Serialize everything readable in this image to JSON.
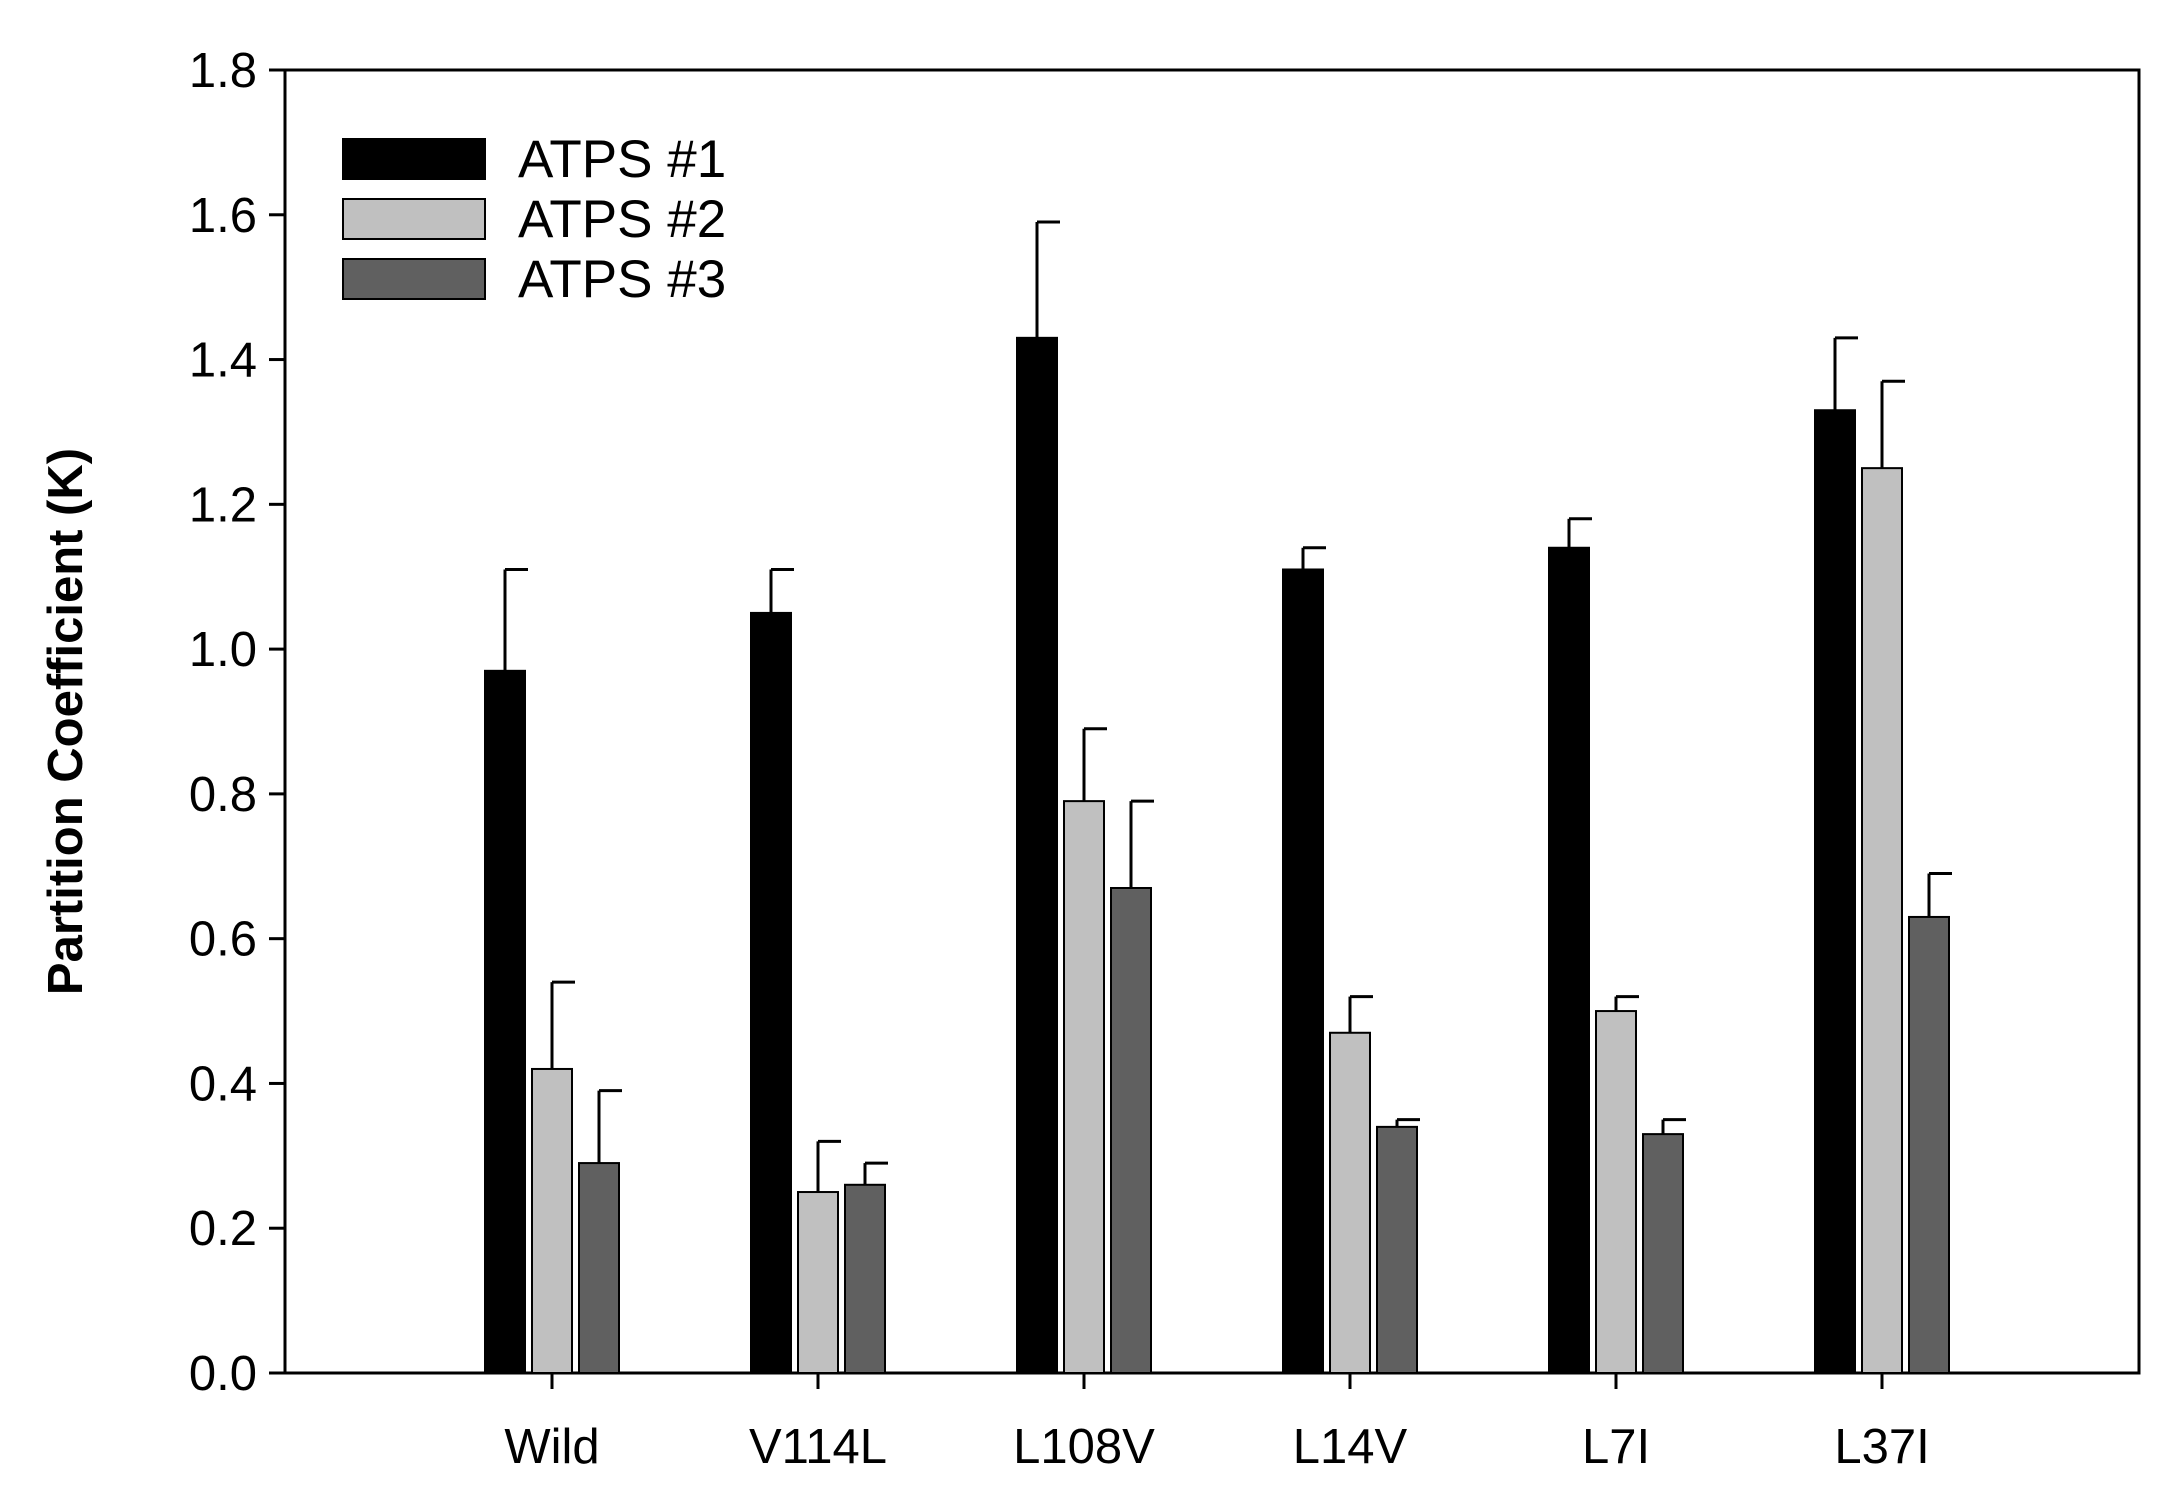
{
  "chart_data": {
    "type": "bar",
    "title": "",
    "xlabel": "",
    "ylabel": "Partition Coefficient (K)",
    "ylim": [
      0,
      1.8
    ],
    "yticks": [
      "0.0",
      "0.2",
      "0.4",
      "0.6",
      "0.8",
      "1.0",
      "1.2",
      "1.4",
      "1.6",
      "1.8"
    ],
    "categories": [
      "Wild",
      "V114L",
      "L108V",
      "L14V",
      "L7I",
      "L37I"
    ],
    "legend_position": "top-left",
    "series": [
      {
        "name": "ATPS #1",
        "color": "#000000",
        "values": [
          0.97,
          1.05,
          1.43,
          1.11,
          1.14,
          1.33
        ],
        "errors": [
          0.14,
          0.06,
          0.16,
          0.03,
          0.04,
          0.1
        ]
      },
      {
        "name": "ATPS #2",
        "color": "#c0c0c0",
        "values": [
          0.42,
          0.25,
          0.79,
          0.47,
          0.5,
          1.25
        ],
        "errors": [
          0.12,
          0.07,
          0.1,
          0.05,
          0.02,
          0.12
        ]
      },
      {
        "name": "ATPS #3",
        "color": "#606060",
        "values": [
          0.29,
          0.26,
          0.67,
          0.34,
          0.33,
          0.63
        ],
        "errors": [
          0.1,
          0.03,
          0.12,
          0.01,
          0.02,
          0.06
        ]
      }
    ]
  }
}
